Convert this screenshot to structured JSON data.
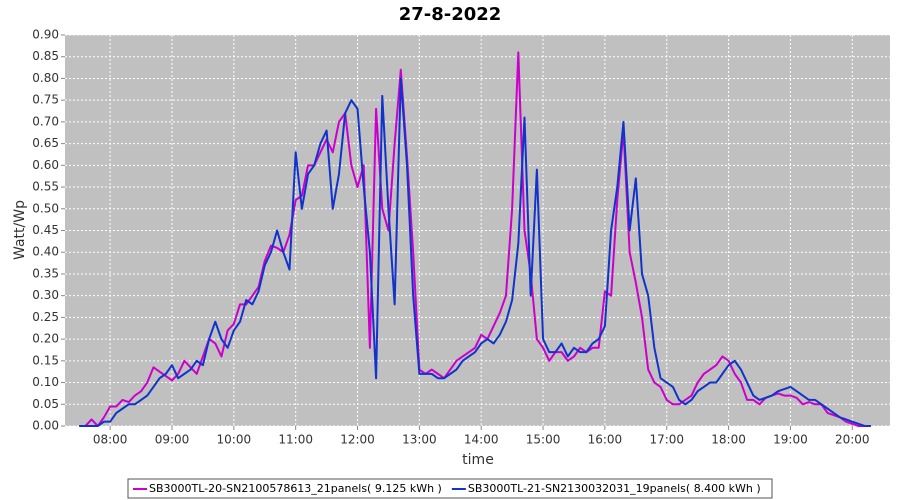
{
  "chart_data": {
    "type": "line",
    "title": "27-8-2022",
    "xlabel": "time",
    "ylabel": "Watt/Wp",
    "x": [
      7.5,
      7.6,
      7.7,
      7.8,
      7.9,
      8.0,
      8.1,
      8.2,
      8.3,
      8.4,
      8.5,
      8.6,
      8.7,
      8.8,
      8.9,
      9.0,
      9.1,
      9.2,
      9.3,
      9.4,
      9.5,
      9.6,
      9.7,
      9.8,
      9.9,
      10.0,
      10.1,
      10.2,
      10.3,
      10.4,
      10.5,
      10.6,
      10.7,
      10.8,
      10.9,
      11.0,
      11.1,
      11.2,
      11.3,
      11.4,
      11.5,
      11.6,
      11.7,
      11.8,
      11.9,
      12.0,
      12.1,
      12.2,
      12.3,
      12.4,
      12.5,
      12.6,
      12.7,
      12.8,
      12.9,
      13.0,
      13.1,
      13.2,
      13.3,
      13.4,
      13.5,
      13.6,
      13.7,
      13.8,
      13.9,
      14.0,
      14.1,
      14.2,
      14.3,
      14.4,
      14.5,
      14.6,
      14.7,
      14.8,
      14.9,
      15.0,
      15.1,
      15.2,
      15.3,
      15.4,
      15.5,
      15.6,
      15.7,
      15.8,
      15.9,
      16.0,
      16.1,
      16.2,
      16.3,
      16.4,
      16.5,
      16.6,
      16.7,
      16.8,
      16.9,
      17.0,
      17.1,
      17.2,
      17.3,
      17.4,
      17.5,
      17.6,
      17.7,
      17.8,
      17.9,
      18.0,
      18.1,
      18.2,
      18.3,
      18.4,
      18.5,
      18.6,
      18.7,
      18.8,
      18.9,
      19.0,
      19.1,
      19.2,
      19.3,
      19.4,
      19.5,
      19.6,
      19.7,
      19.8,
      19.9,
      20.0,
      20.1,
      20.2,
      20.3
    ],
    "series": [
      {
        "name": "SB3000TL-20-SN2100578613_21panels( 9.125 kWh )",
        "color": "#cc00cc",
        "values": [
          0,
          0,
          0.015,
          0,
          0.02,
          0.045,
          0.045,
          0.06,
          0.055,
          0.07,
          0.08,
          0.1,
          0.135,
          0.125,
          0.115,
          0.105,
          0.12,
          0.15,
          0.135,
          0.12,
          0.16,
          0.2,
          0.19,
          0.16,
          0.22,
          0.235,
          0.28,
          0.28,
          0.3,
          0.32,
          0.38,
          0.415,
          0.41,
          0.4,
          0.44,
          0.52,
          0.53,
          0.6,
          0.6,
          0.63,
          0.66,
          0.63,
          0.7,
          0.72,
          0.6,
          0.55,
          0.6,
          0.18,
          0.73,
          0.5,
          0.45,
          0.65,
          0.82,
          0.62,
          0.4,
          0.13,
          0.12,
          0.13,
          0.12,
          0.11,
          0.13,
          0.15,
          0.16,
          0.17,
          0.18,
          0.21,
          0.2,
          0.23,
          0.26,
          0.3,
          0.5,
          0.86,
          0.45,
          0.35,
          0.2,
          0.18,
          0.15,
          0.17,
          0.17,
          0.15,
          0.16,
          0.18,
          0.17,
          0.18,
          0.18,
          0.31,
          0.3,
          0.52,
          0.68,
          0.4,
          0.33,
          0.25,
          0.13,
          0.1,
          0.09,
          0.06,
          0.05,
          0.05,
          0.06,
          0.07,
          0.1,
          0.12,
          0.13,
          0.14,
          0.16,
          0.15,
          0.12,
          0.1,
          0.06,
          0.06,
          0.05,
          0.065,
          0.07,
          0.075,
          0.07,
          0.07,
          0.065,
          0.05,
          0.055,
          0.05,
          0.05,
          0.03,
          0.025,
          0.02,
          0.01,
          0.005,
          0,
          0,
          0
        ]
      },
      {
        "name": "SB3000TL-21-SN2130032031_19panels( 8.400 kWh )",
        "color": "#1133cc",
        "values": [
          0,
          0,
          0,
          0,
          0.01,
          0.01,
          0.03,
          0.04,
          0.05,
          0.05,
          0.06,
          0.07,
          0.09,
          0.11,
          0.12,
          0.14,
          0.11,
          0.12,
          0.13,
          0.15,
          0.14,
          0.2,
          0.24,
          0.2,
          0.18,
          0.22,
          0.24,
          0.29,
          0.28,
          0.31,
          0.37,
          0.4,
          0.45,
          0.4,
          0.36,
          0.63,
          0.5,
          0.58,
          0.6,
          0.65,
          0.68,
          0.5,
          0.58,
          0.72,
          0.75,
          0.73,
          0.55,
          0.4,
          0.11,
          0.76,
          0.5,
          0.28,
          0.8,
          0.6,
          0.3,
          0.12,
          0.12,
          0.12,
          0.11,
          0.11,
          0.12,
          0.13,
          0.15,
          0.16,
          0.17,
          0.19,
          0.2,
          0.19,
          0.21,
          0.24,
          0.29,
          0.42,
          0.71,
          0.3,
          0.59,
          0.2,
          0.17,
          0.17,
          0.19,
          0.16,
          0.18,
          0.17,
          0.17,
          0.19,
          0.2,
          0.23,
          0.45,
          0.55,
          0.7,
          0.45,
          0.57,
          0.35,
          0.3,
          0.18,
          0.11,
          0.1,
          0.09,
          0.06,
          0.05,
          0.06,
          0.08,
          0.09,
          0.1,
          0.1,
          0.12,
          0.14,
          0.15,
          0.13,
          0.1,
          0.07,
          0.06,
          0.065,
          0.07,
          0.08,
          0.085,
          0.09,
          0.08,
          0.07,
          0.06,
          0.06,
          0.05,
          0.04,
          0.03,
          0.02,
          0.015,
          0.01,
          0.005,
          0,
          0
        ]
      }
    ],
    "xlim": [
      7.27,
      20.61
    ],
    "xticks": [
      {
        "value": 8,
        "label": "08:00"
      },
      {
        "value": 9,
        "label": "09:00"
      },
      {
        "value": 10,
        "label": "10:00"
      },
      {
        "value": 11,
        "label": "11:00"
      },
      {
        "value": 12,
        "label": "12:00"
      },
      {
        "value": 13,
        "label": "13:00"
      },
      {
        "value": 14,
        "label": "14:00"
      },
      {
        "value": 15,
        "label": "15:00"
      },
      {
        "value": 16,
        "label": "16:00"
      },
      {
        "value": 17,
        "label": "17:00"
      },
      {
        "value": 18,
        "label": "18:00"
      },
      {
        "value": 19,
        "label": "19:00"
      },
      {
        "value": 20,
        "label": "20:00"
      }
    ],
    "ylim": [
      0,
      0.9
    ],
    "yticks": [
      {
        "value": 0,
        "label": "0.00"
      },
      0.05,
      {
        "value": 0.1,
        "label": "0.10"
      },
      0.15,
      {
        "value": 0.2,
        "label": "0.20"
      },
      0.25,
      {
        "value": 0.3,
        "label": "0.30"
      },
      0.35,
      {
        "value": 0.4,
        "label": "0.40"
      },
      0.45,
      {
        "value": 0.5,
        "label": "0.50"
      },
      0.55,
      {
        "value": 0.6,
        "label": "0.60"
      },
      0.65,
      {
        "value": 0.7,
        "label": "0.70"
      },
      0.75,
      {
        "value": 0.8,
        "label": "0.80"
      },
      0.85,
      {
        "value": 0.9,
        "label": "0.90"
      }
    ],
    "grid": true,
    "legend": "bottom"
  }
}
